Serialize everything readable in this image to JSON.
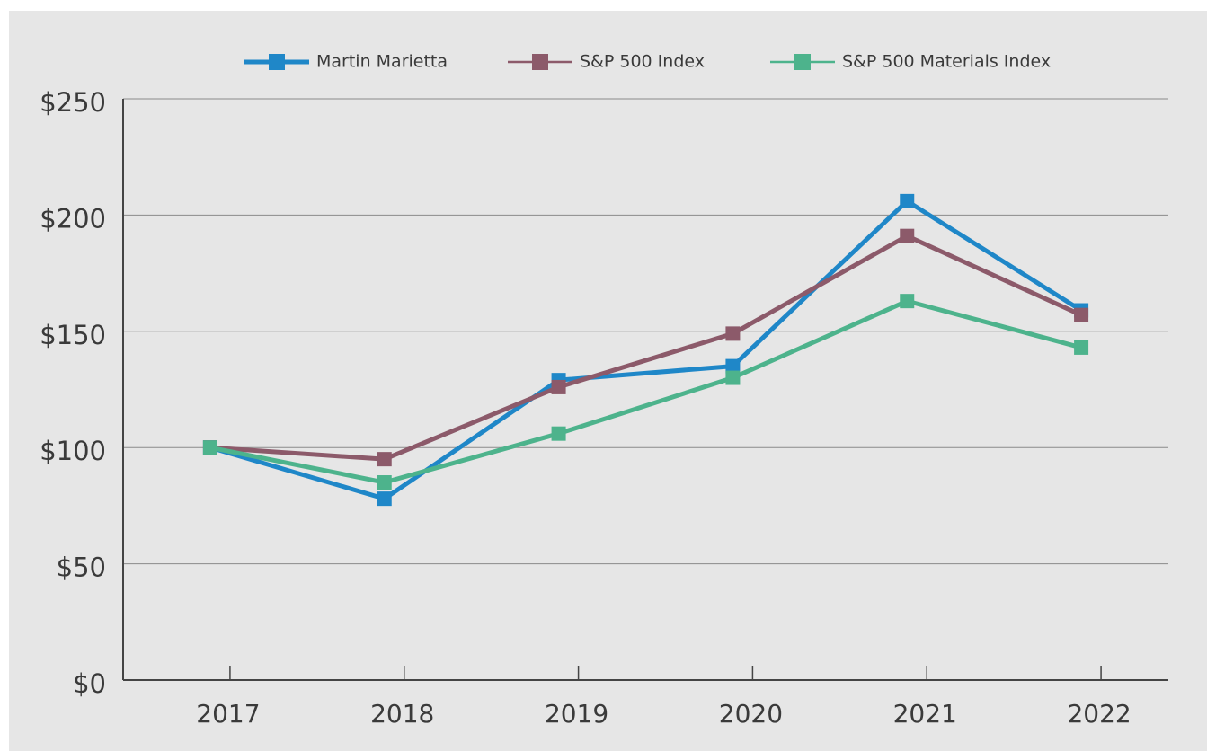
{
  "chart_data": {
    "type": "line",
    "categories": [
      "2017",
      "2018",
      "2019",
      "2020",
      "2021",
      "2022"
    ],
    "series": [
      {
        "name": "Martin Marietta",
        "color": "#1f87c8",
        "values": [
          100,
          78,
          129,
          135,
          206,
          159
        ]
      },
      {
        "name": "S&P 500 Index",
        "color": "#8c5a6a",
        "values": [
          100,
          95,
          126,
          149,
          191,
          157
        ]
      },
      {
        "name": "S&P 500 Materials Index",
        "color": "#4db38c",
        "values": [
          100,
          85,
          106,
          130,
          163,
          143
        ]
      }
    ],
    "ylim": [
      0,
      250
    ],
    "yticks": [
      {
        "value": 0,
        "label": "$0"
      },
      {
        "value": 50,
        "label": "$50"
      },
      {
        "value": 100,
        "label": "$100"
      },
      {
        "value": 150,
        "label": "$150"
      },
      {
        "value": 200,
        "label": "$200"
      },
      {
        "value": 250,
        "label": "$250"
      }
    ],
    "grid": true,
    "legend": "top"
  }
}
